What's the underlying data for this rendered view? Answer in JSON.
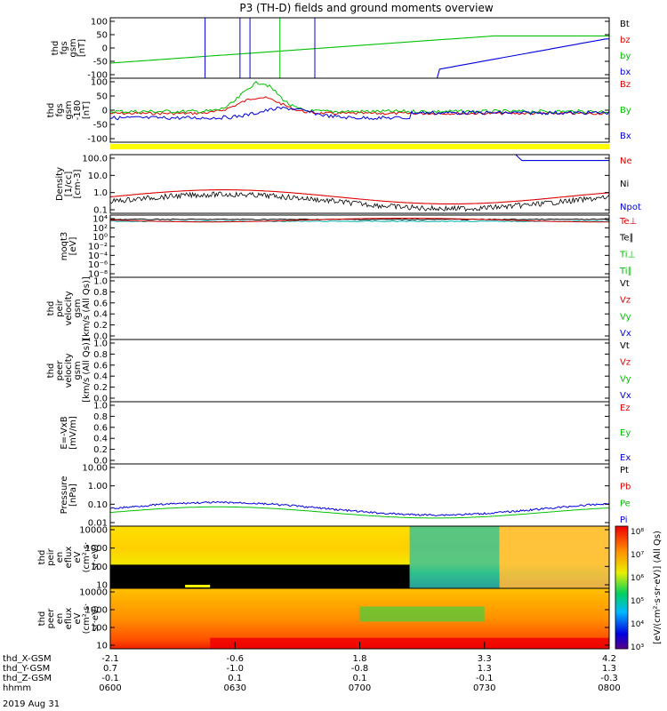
{
  "title": "P3 (TH-D) fields and ground moments overview",
  "chart_data": {
    "type": "line",
    "title": "P3 (TH-D) fields and ground moments overview",
    "date_label": "2019 Aug 31",
    "x_ticks": {
      "rows": [
        {
          "label": "thd_X-GSM",
          "values": [
            "-2.1",
            "-0.6",
            "1.8",
            "3.3",
            "4.2"
          ]
        },
        {
          "label": "thd_Y-GSM",
          "values": [
            "0.7",
            "-1.0",
            "-0.8",
            "1.3",
            "1.3"
          ]
        },
        {
          "label": "thd_Z-GSM",
          "values": [
            "-0.1",
            "0.1",
            "0.1",
            "-0.1",
            "-0.3"
          ]
        },
        {
          "label": "hhmm",
          "values": [
            "0600",
            "0630",
            "0700",
            "0730",
            "0800"
          ]
        }
      ]
    },
    "panels": [
      {
        "ylabel": [
          "thd",
          "fgs",
          "gsm",
          "[nT]"
        ],
        "yticks": [
          "100",
          "50",
          "0",
          "-50",
          "-100"
        ],
        "ylim": [
          -100,
          100
        ],
        "legend": [
          {
            "text": "Bt",
            "color": "#000000"
          },
          {
            "text": "bz",
            "color": "#e00000"
          },
          {
            "text": "by",
            "color": "#00c000"
          },
          {
            "text": "bx",
            "color": "#0000dd"
          }
        ]
      },
      {
        "ylabel": [
          "thd",
          "fgs",
          "gsm",
          "-180",
          "[nT]"
        ],
        "yticks": [
          "100",
          "50",
          "0",
          "-50",
          "-100"
        ],
        "ylim": [
          -120,
          120
        ],
        "legend": [
          {
            "text": "Bz",
            "color": "#e00000"
          },
          {
            "text": "By",
            "color": "#00c000"
          },
          {
            "text": "Bx",
            "color": "#0000dd"
          }
        ]
      },
      {
        "ylabel": [
          "Density",
          "[1/cc]",
          "[cm-3]"
        ],
        "yticks": [
          "100.0",
          "10.0",
          "1.0",
          "0.1"
        ],
        "ylim": [
          0.1,
          200
        ],
        "scale": "log",
        "legend": [
          {
            "text": "Ne",
            "color": "#e00000"
          },
          {
            "text": "Ni",
            "color": "#000000"
          },
          {
            "text": "Npot",
            "color": "#0000dd"
          }
        ]
      },
      {
        "ylabel": [
          "moqt3",
          "[eV]"
        ],
        "yticks": [
          "10⁴",
          "10²",
          "10⁰",
          "10⁻²",
          "10⁻⁴",
          "10⁻⁶",
          "10⁻⁸"
        ],
        "ylim": [
          1e-09,
          100000.0
        ],
        "scale": "log",
        "legend": [
          {
            "text": "Te⊥",
            "color": "#e00000"
          },
          {
            "text": "Te∥",
            "color": "#000000"
          },
          {
            "text": "Ti⊥",
            "color": "#00c000"
          },
          {
            "text": "Ti∥",
            "color": "#00c000"
          }
        ]
      },
      {
        "ylabel": [
          "thd",
          "peir",
          "velocity",
          "gsm",
          "[km/s (All Qs)]"
        ],
        "yticks": [
          "1.0",
          "0.8",
          "0.6",
          "0.4",
          "0.2",
          "0.0"
        ],
        "ylim": [
          0,
          1
        ],
        "legend": [
          {
            "text": "Vt",
            "color": "#000000"
          },
          {
            "text": "Vz",
            "color": "#e00000"
          },
          {
            "text": "Vy",
            "color": "#00c000"
          },
          {
            "text": "Vx",
            "color": "#0000dd"
          }
        ]
      },
      {
        "ylabel": [
          "thd",
          "peer",
          "velocity",
          "gsm",
          "[km/s (All Qs)]"
        ],
        "yticks": [
          "1.0",
          "0.8",
          "0.6",
          "0.4",
          "0.2",
          "0.0"
        ],
        "ylim": [
          0,
          1
        ],
        "legend": [
          {
            "text": "Vt",
            "color": "#000000"
          },
          {
            "text": "Vz",
            "color": "#e00000"
          },
          {
            "text": "Vy",
            "color": "#00c000"
          },
          {
            "text": "Vx",
            "color": "#0000dd"
          }
        ]
      },
      {
        "ylabel": [
          "E=-VxB",
          "[mV/m]"
        ],
        "yticks": [
          "1.0",
          "0.8",
          "0.6",
          "0.4",
          "0.2",
          "0.0"
        ],
        "ylim": [
          0,
          1
        ],
        "legend": [
          {
            "text": "Ez",
            "color": "#e00000"
          },
          {
            "text": "Ey",
            "color": "#00c000"
          },
          {
            "text": "Ex",
            "color": "#0000dd"
          }
        ]
      },
      {
        "ylabel": [
          "Pressure",
          "[nPa]"
        ],
        "yticks": [
          "10.00",
          "1.00",
          "0.10",
          "0.01"
        ],
        "ylim": [
          0.005,
          30
        ],
        "scale": "log",
        "legend": [
          {
            "text": "Pt",
            "color": "#000000"
          },
          {
            "text": "Pb",
            "color": "#e00000"
          },
          {
            "text": "Pe",
            "color": "#00c000"
          },
          {
            "text": "Pi",
            "color": "#0000dd"
          }
        ]
      },
      {
        "ylabel": [
          "thd",
          "peir",
          "en",
          "eflux",
          "eV",
          "(cm²·s·",
          "sr·eV)"
        ],
        "yticks": [
          "10000",
          "1000",
          "100",
          "10"
        ],
        "ylim": [
          5,
          20000
        ],
        "scale": "log",
        "spectrogram": true
      },
      {
        "ylabel": [
          "thd",
          "peer",
          "en",
          "eflux",
          "eV",
          "(cm²·s·",
          "sr·eV)"
        ],
        "yticks": [
          "10000",
          "1000",
          "100",
          "10"
        ],
        "ylim": [
          5,
          20000
        ],
        "scale": "log",
        "spectrogram": true
      }
    ],
    "colorbar": {
      "ticks": [
        "10⁸",
        "10⁷",
        "10⁶",
        "10⁵",
        "10⁴",
        "10³"
      ],
      "label": "[eV/(cm²·s·sr·eV)] (All Qs)"
    }
  }
}
